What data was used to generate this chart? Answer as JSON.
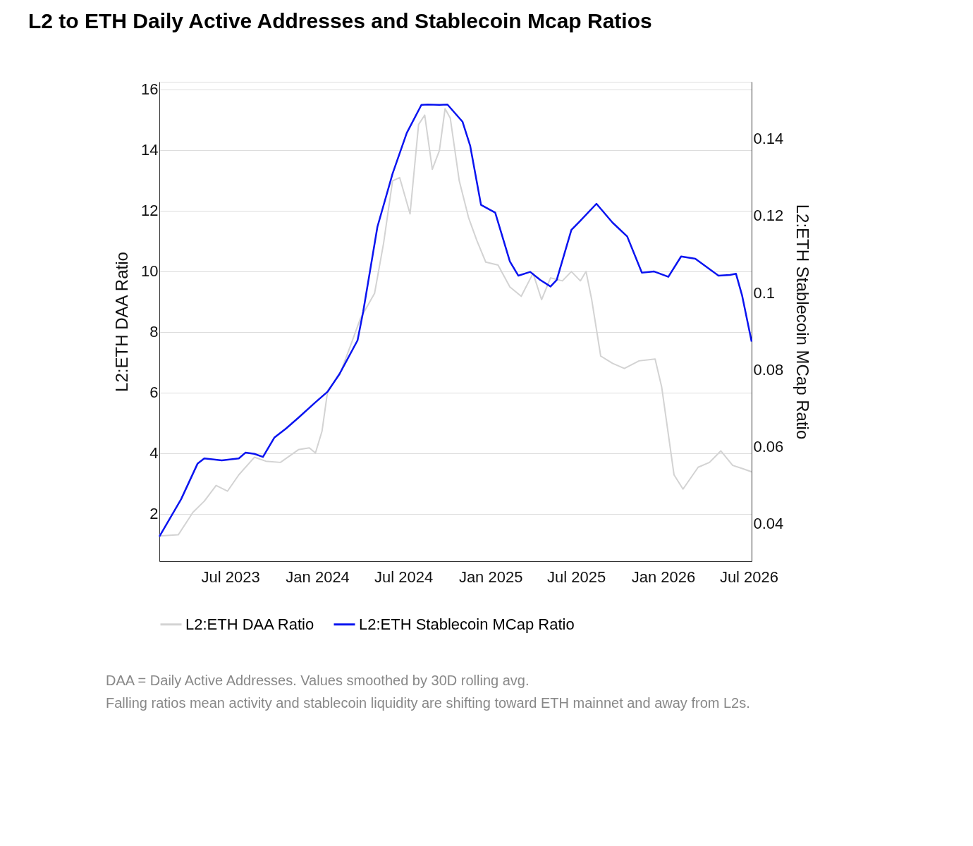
{
  "chart_data": {
    "type": "line",
    "title": "L2 to ETH Daily Active Addresses and Stablecoin Mcap Ratios",
    "ylabel": "L2:ETH DAA Ratio",
    "y2label": "L2:ETH Stablecoin MCap Ratio",
    "xlim": [
      "2023-02-01",
      "2026-07-07"
    ],
    "xticks": [
      {
        "value": "2023-07-01",
        "label": "Jul 2023"
      },
      {
        "value": "2024-01-01",
        "label": "Jan 2024"
      },
      {
        "value": "2024-07-01",
        "label": "Jul 2024"
      },
      {
        "value": "2025-01-01",
        "label": "Jan 2025"
      },
      {
        "value": "2025-07-01",
        "label": "Jul 2025"
      },
      {
        "value": "2026-01-01",
        "label": "Jan 2026"
      },
      {
        "value": "2026-07-01",
        "label": "Jul 2026"
      }
    ],
    "ylim": [
      0.43,
      16.25
    ],
    "yticks": [
      2,
      4,
      6,
      8,
      10,
      12,
      14,
      16
    ],
    "y2lim": [
      0.0302,
      0.1548
    ],
    "y2ticks": [
      0.04,
      0.06,
      0.08,
      0.1,
      0.12,
      0.14
    ],
    "grid": "y",
    "legend": "bottom",
    "marker": "none",
    "line_style": "solid",
    "series": [
      {
        "name": "L2:ETH DAA Ratio",
        "color": "#d3d3d3",
        "x": [
          "2023-02-01",
          "2023-03-13",
          "2023-04-13",
          "2023-05-07",
          "2023-06-01",
          "2023-06-25",
          "2023-07-19",
          "2023-08-21",
          "2023-09-14",
          "2023-10-15",
          "2023-11-22",
          "2023-12-15",
          "2023-12-28",
          "2024-01-11",
          "2024-01-23",
          "2024-02-17",
          "2024-03-13",
          "2024-04-01",
          "2024-05-01",
          "2024-05-20",
          "2024-06-08",
          "2024-06-23",
          "2024-07-15",
          "2024-08-02",
          "2024-08-15",
          "2024-08-31",
          "2024-09-15",
          "2024-09-27",
          "2024-10-08",
          "2024-10-27",
          "2024-11-16",
          "2024-12-03",
          "2024-12-22",
          "2025-01-17",
          "2025-02-11",
          "2025-03-07",
          "2025-04-01",
          "2025-04-19",
          "2025-05-08",
          "2025-06-02",
          "2025-06-21",
          "2025-07-10",
          "2025-07-22",
          "2025-08-03",
          "2025-08-22",
          "2025-09-16",
          "2025-10-11",
          "2025-11-11",
          "2025-12-15",
          "2025-12-29",
          "2026-01-24",
          "2026-02-12",
          "2026-03-16",
          "2026-04-09",
          "2026-05-03",
          "2026-05-28",
          "2026-06-17",
          "2026-07-07"
        ],
        "values": [
          1.26,
          1.3,
          2.04,
          2.41,
          2.93,
          2.74,
          3.28,
          3.86,
          3.73,
          3.69,
          4.11,
          4.17,
          4.0,
          4.73,
          6.07,
          6.58,
          7.62,
          8.44,
          9.27,
          10.92,
          12.98,
          13.09,
          11.89,
          14.84,
          15.15,
          13.36,
          13.98,
          15.36,
          15.05,
          12.98,
          11.75,
          11.02,
          10.3,
          10.2,
          9.48,
          9.17,
          9.93,
          9.06,
          9.78,
          9.68,
          9.99,
          9.68,
          9.99,
          9.06,
          7.2,
          6.96,
          6.79,
          7.04,
          7.1,
          6.17,
          3.28,
          2.81,
          3.53,
          3.69,
          4.07,
          3.59,
          3.49,
          3.38
        ]
      },
      {
        "name": "L2:ETH Stablecoin MCap Ratio",
        "color": "#0a14f0",
        "axis": "y2",
        "x": [
          "2023-02-01",
          "2023-03-19",
          "2023-04-23",
          "2023-05-07",
          "2023-06-13",
          "2023-07-19",
          "2023-08-02",
          "2023-08-21",
          "2023-09-08",
          "2023-10-02",
          "2023-10-27",
          "2023-11-22",
          "2023-12-28",
          "2024-01-23",
          "2024-02-17",
          "2024-03-26",
          "2024-04-07",
          "2024-05-07",
          "2024-06-08",
          "2024-07-08",
          "2024-08-08",
          "2024-08-21",
          "2024-09-15",
          "2024-10-02",
          "2024-11-03",
          "2024-11-19",
          "2024-12-12",
          "2025-01-11",
          "2025-02-11",
          "2025-03-01",
          "2025-03-26",
          "2025-04-16",
          "2025-05-08",
          "2025-05-21",
          "2025-06-21",
          "2025-07-10",
          "2025-08-13",
          "2025-09-16",
          "2025-10-17",
          "2025-11-17",
          "2025-12-13",
          "2026-01-12",
          "2026-02-08",
          "2026-03-10",
          "2026-04-28",
          "2026-05-22",
          "2026-06-04",
          "2026-06-17",
          "2026-07-07"
        ],
        "values": [
          0.0366,
          0.0463,
          0.0556,
          0.0569,
          0.0564,
          0.0569,
          0.0584,
          0.0581,
          0.0573,
          0.0623,
          0.0647,
          0.0675,
          0.0715,
          0.0743,
          0.0789,
          0.0876,
          0.0951,
          0.1171,
          0.1309,
          0.1415,
          0.1488,
          0.1489,
          0.1488,
          0.1489,
          0.1444,
          0.1382,
          0.1228,
          0.1208,
          0.1081,
          0.1044,
          0.1054,
          0.1033,
          0.1016,
          0.1033,
          0.1163,
          0.1187,
          0.1231,
          0.1182,
          0.1146,
          0.1052,
          0.1055,
          0.1041,
          0.1094,
          0.1088,
          0.1044,
          0.1046,
          0.1049,
          0.0992,
          0.0873
        ]
      }
    ],
    "annotations": [
      "DAA = Daily Active Addresses. Values smoothed by 30D rolling avg.",
      "Falling ratios mean activity and stablecoin liquidity are shifting toward ETH mainnet and away from L2s."
    ]
  }
}
